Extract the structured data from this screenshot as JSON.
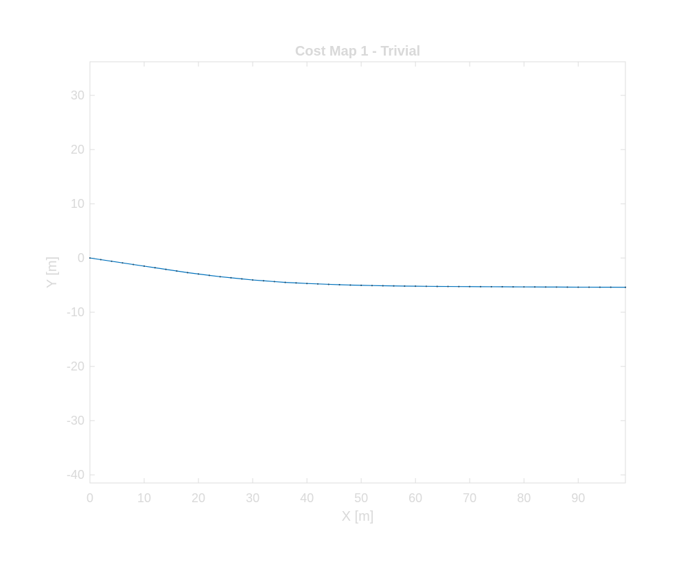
{
  "chart_data": {
    "type": "line",
    "title": "Cost Map 1 - Trivial",
    "xlabel": "X [m]",
    "ylabel": "Y [m]",
    "xlim": [
      0,
      98.7
    ],
    "ylim": [
      -41.5,
      36.2
    ],
    "xticks": [
      0,
      10,
      20,
      30,
      40,
      50,
      60,
      70,
      80,
      90
    ],
    "yticks": [
      -40,
      -30,
      -20,
      -10,
      0,
      10,
      20,
      30
    ],
    "grid": false,
    "series": [
      {
        "color": "#0072bd",
        "marker": "dot",
        "x": [
          0,
          2,
          4,
          6,
          8,
          10,
          12,
          14,
          16,
          18,
          20,
          22,
          24,
          26,
          28,
          30,
          32,
          34,
          36,
          38,
          40,
          42,
          44,
          46,
          48,
          50,
          52,
          54,
          56,
          58,
          60,
          62,
          64,
          66,
          68,
          70,
          72,
          74,
          76,
          78,
          80,
          82,
          84,
          86,
          88,
          90,
          92,
          94,
          96,
          98.7
        ],
        "y": [
          0,
          -0.3,
          -0.6,
          -0.9,
          -1.2,
          -1.5,
          -1.8,
          -2.1,
          -2.4,
          -2.7,
          -2.95,
          -3.2,
          -3.45,
          -3.65,
          -3.85,
          -4.05,
          -4.2,
          -4.35,
          -4.5,
          -4.6,
          -4.7,
          -4.78,
          -4.86,
          -4.93,
          -4.99,
          -5.04,
          -5.08,
          -5.12,
          -5.15,
          -5.18,
          -5.2,
          -5.22,
          -5.24,
          -5.25,
          -5.27,
          -5.28,
          -5.29,
          -5.3,
          -5.31,
          -5.32,
          -5.33,
          -5.34,
          -5.35,
          -5.36,
          -5.37,
          -5.38,
          -5.38,
          -5.39,
          -5.39,
          -5.4
        ]
      }
    ]
  }
}
